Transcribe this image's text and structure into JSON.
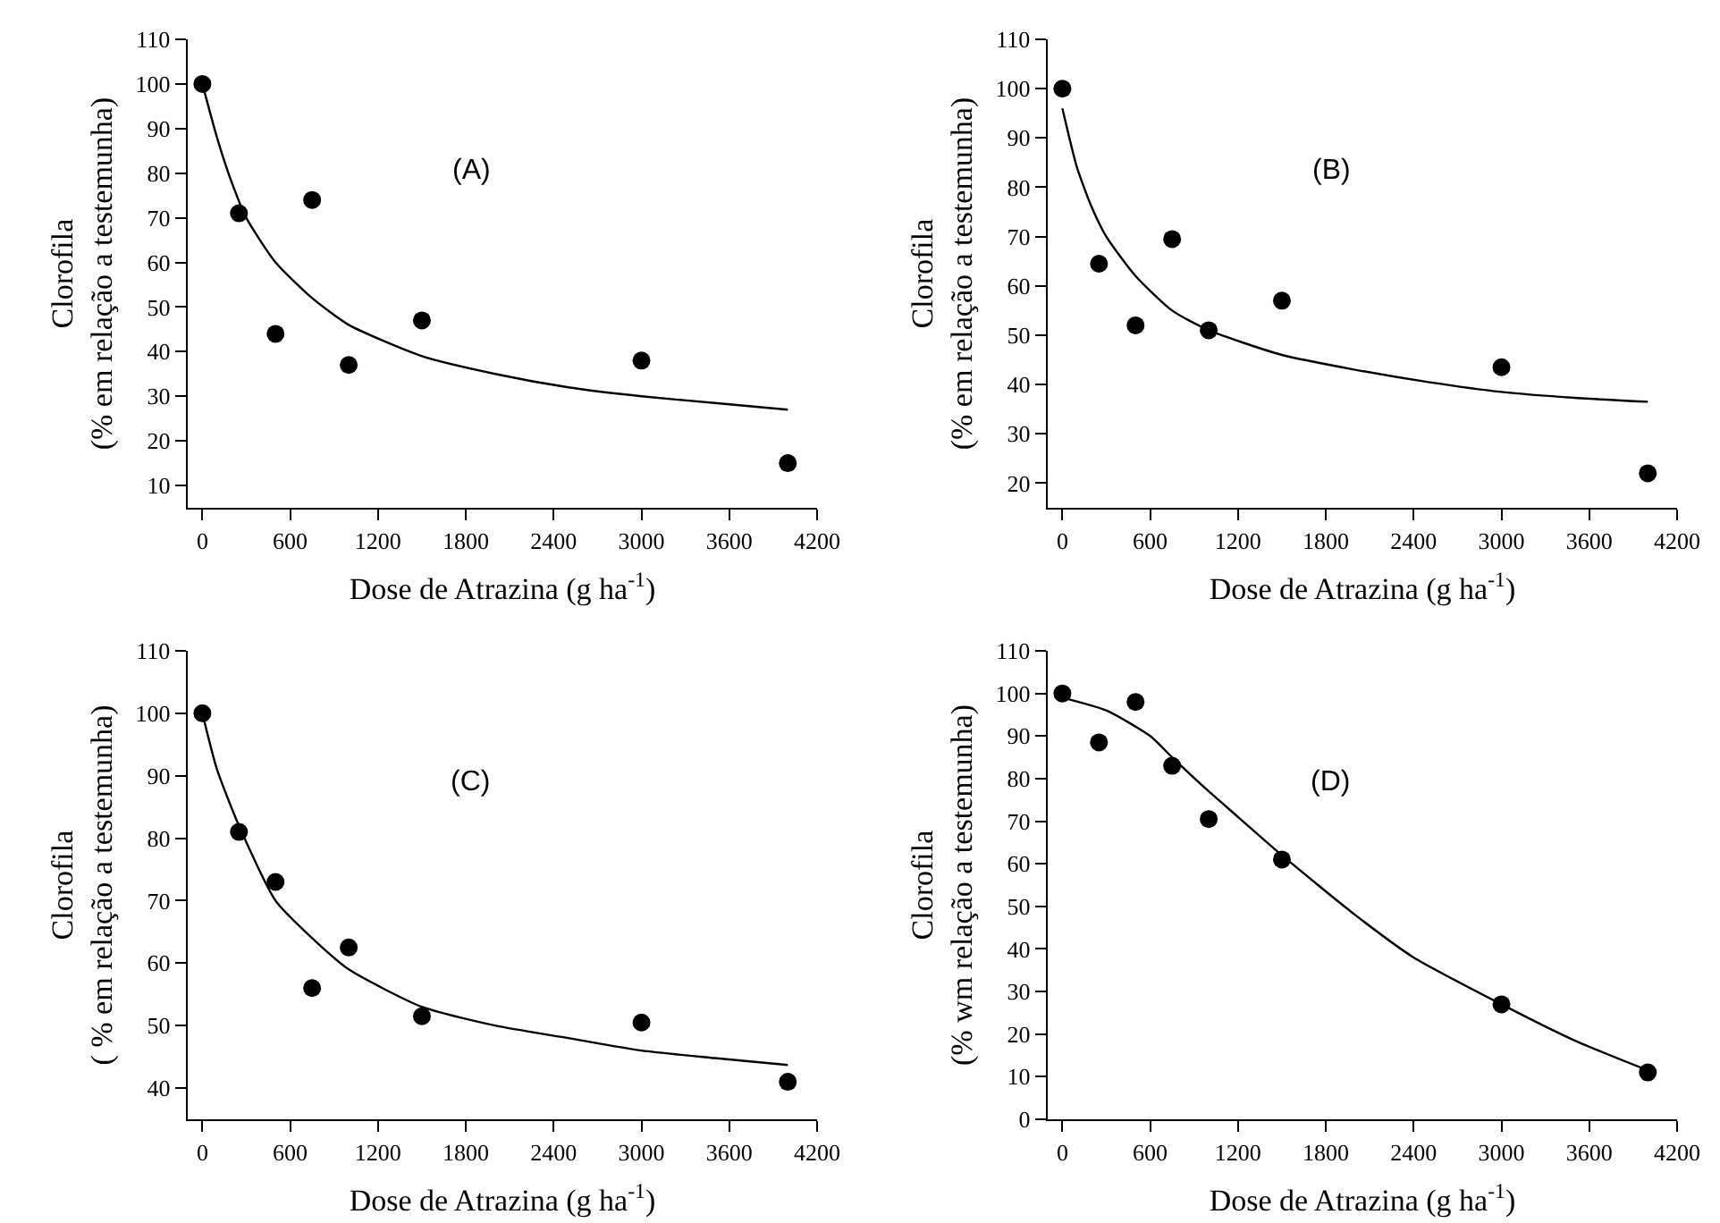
{
  "chart_data": [
    {
      "type": "scatter",
      "xlabel": "Dose de Atrazina (g ha$^{-1}$)",
      "ylabel": "Clorofila\n(% em relação a testemunha)",
      "annotations": [
        "(A)"
      ],
      "x": [
        0,
        250,
        500,
        750,
        1000,
        1500,
        3000,
        4000
      ],
      "xlim": [
        -100,
        4200
      ],
      "xticks": [
        0,
        600,
        1200,
        1800,
        2400,
        3000,
        3600,
        4200
      ],
      "ylim": [
        5,
        110
      ],
      "yticks": [
        10,
        20,
        30,
        40,
        50,
        60,
        70,
        80,
        90,
        100,
        110
      ],
      "grid": false,
      "marker": "circle",
      "line_style": "solid",
      "series": [
        {
          "color": "#000000",
          "values": [
            100,
            71,
            44,
            74,
            37,
            47,
            38,
            15
          ]
        },
        {
          "type": "line",
          "color": "#000000",
          "marker": "none",
          "x": [
            0,
            100,
            200,
            300,
            500,
            750,
            1000,
            1500,
            2000,
            2500,
            3000,
            3500,
            4000
          ],
          "values": [
            100,
            88,
            78,
            70,
            60,
            52,
            46,
            39,
            35,
            32,
            30,
            28.5,
            27
          ]
        }
      ]
    },
    {
      "type": "scatter",
      "xlabel": "Dose de Atrazina (g ha$^{-1}$)",
      "ylabel": "Clorofila\n(% em relação a testemunha)",
      "annotations": [
        "(B)"
      ],
      "x": [
        0,
        250,
        500,
        750,
        1000,
        1500,
        3000,
        4000
      ],
      "xlim": [
        -100,
        4200
      ],
      "xticks": [
        0,
        600,
        1200,
        1800,
        2400,
        3000,
        3600,
        4200
      ],
      "ylim": [
        15,
        110
      ],
      "yticks": [
        20,
        30,
        40,
        50,
        60,
        70,
        80,
        90,
        100,
        110
      ],
      "grid": false,
      "marker": "circle",
      "line_style": "solid",
      "series": [
        {
          "color": "#000000",
          "values": [
            100,
            64.5,
            52,
            69.5,
            51,
            57,
            43.5,
            22
          ]
        },
        {
          "type": "line",
          "color": "#000000",
          "marker": "none",
          "x": [
            0,
            100,
            200,
            300,
            500,
            750,
            1000,
            1500,
            2000,
            2500,
            3000,
            3500,
            4000
          ],
          "values": [
            96,
            84,
            76,
            70,
            62,
            55,
            51,
            46,
            43,
            40.5,
            38.5,
            37.3,
            36.5
          ]
        }
      ]
    },
    {
      "type": "scatter",
      "xlabel": "Dose de Atrazina (g ha$^{-1}$)",
      "ylabel": "Clorofila\n( % em relação a testemunha)",
      "annotations": [
        "(C)"
      ],
      "x": [
        0,
        250,
        500,
        750,
        1000,
        1500,
        3000,
        4000
      ],
      "xlim": [
        -100,
        4200
      ],
      "xticks": [
        0,
        600,
        1200,
        1800,
        2400,
        3000,
        3600,
        4200
      ],
      "ylim": [
        35,
        110
      ],
      "yticks": [
        40,
        50,
        60,
        70,
        80,
        90,
        100,
        110
      ],
      "grid": false,
      "marker": "circle",
      "line_style": "solid",
      "series": [
        {
          "color": "#000000",
          "values": [
            100,
            81,
            73,
            56,
            62.5,
            51.5,
            50.5,
            41
          ]
        },
        {
          "type": "line",
          "color": "#000000",
          "marker": "none",
          "x": [
            0,
            100,
            250,
            500,
            750,
            1000,
            1500,
            2000,
            2500,
            3000,
            3500,
            4000
          ],
          "values": [
            100,
            91,
            82,
            70,
            64,
            59,
            53,
            50,
            48,
            46,
            44.8,
            43.7
          ]
        }
      ]
    },
    {
      "type": "scatter",
      "xlabel": "Dose de Atrazina (g ha$^{-1}$)",
      "ylabel": "Clorofila\n(% wm relação a testemunha)",
      "annotations": [
        "(D)"
      ],
      "x": [
        0,
        250,
        500,
        750,
        1000,
        1500,
        3000,
        4000
      ],
      "xlim": [
        -100,
        4200
      ],
      "xticks": [
        0,
        600,
        1200,
        1800,
        2400,
        3000,
        3600,
        4200
      ],
      "ylim": [
        0,
        110
      ],
      "yticks": [
        0,
        10,
        20,
        30,
        40,
        50,
        60,
        70,
        80,
        90,
        100,
        110
      ],
      "grid": false,
      "marker": "circle",
      "line_style": "solid",
      "series": [
        {
          "color": "#000000",
          "values": [
            100,
            88.5,
            98,
            83,
            70.5,
            61,
            27,
            11
          ]
        },
        {
          "type": "line",
          "color": "#000000",
          "marker": "none",
          "x": [
            0,
            300,
            600,
            750,
            1000,
            1200,
            1500,
            2000,
            2400,
            3000,
            3500,
            4000
          ],
          "values": [
            99,
            96,
            90,
            85,
            77,
            71,
            62,
            48,
            38,
            27,
            18.5,
            11.5
          ]
        }
      ]
    }
  ]
}
